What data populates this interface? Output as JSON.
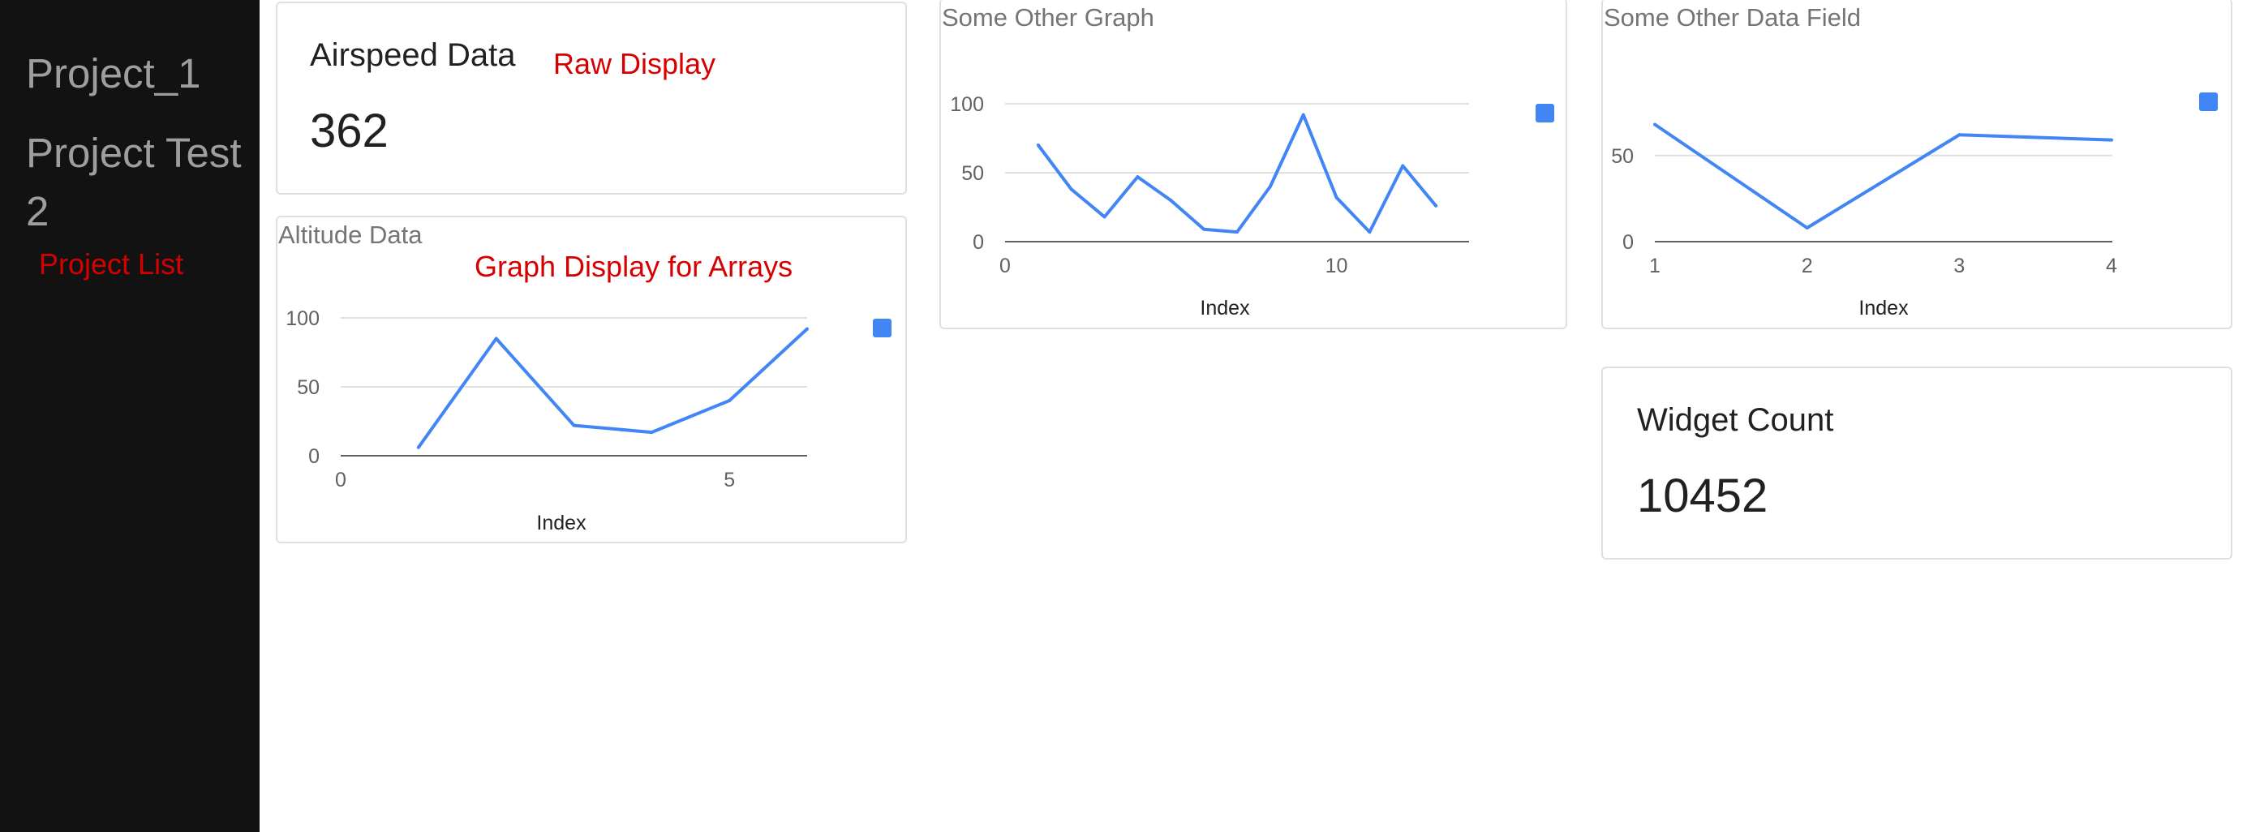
{
  "sidebar": {
    "projects": [
      "Project_1",
      "Project Test",
      "2"
    ],
    "annotation": "Project List"
  },
  "airspeed_card": {
    "title": "Airspeed Data",
    "annotation": "Raw Display",
    "value": "362"
  },
  "widget_card": {
    "title": "Widget Count",
    "value": "10452"
  },
  "altitude_annotation": "Graph Display for Arrays",
  "colors": {
    "series": "#4285f4",
    "grid": "#e0e0e0",
    "axis": "#616161",
    "annotation": "#d50000",
    "sidebar": "#121212"
  },
  "chart_data": [
    {
      "type": "line",
      "title": "Altitude Data",
      "xlabel": "Index",
      "ylabel": "",
      "xlim": [
        0,
        6
      ],
      "ylim": [
        0,
        100
      ],
      "x_ticks": [
        "0",
        "5"
      ],
      "y_ticks": [
        "0",
        "50",
        "100"
      ],
      "legend": "right",
      "grid": true,
      "x": [
        1,
        2,
        3,
        4,
        5,
        6
      ],
      "values": [
        6,
        85,
        22,
        17,
        40,
        92
      ]
    },
    {
      "type": "line",
      "title": "Some Other Graph",
      "xlabel": "Index",
      "ylabel": "",
      "xlim": [
        0,
        14
      ],
      "ylim": [
        0,
        100
      ],
      "x_ticks": [
        "0",
        "10"
      ],
      "y_ticks": [
        "0",
        "50",
        "100"
      ],
      "legend": "right",
      "grid": true,
      "x": [
        1,
        2,
        3,
        4,
        5,
        6,
        7,
        8,
        9,
        10,
        11,
        12,
        13
      ],
      "values": [
        70,
        38,
        18,
        47,
        30,
        9,
        7,
        40,
        92,
        32,
        7,
        55,
        26
      ]
    },
    {
      "type": "line",
      "title": "Some Other Data Field",
      "xlabel": "Index",
      "ylabel": "",
      "xlim": [
        1,
        4
      ],
      "ylim": [
        0,
        80
      ],
      "x_ticks": [
        "1",
        "2",
        "3",
        "4"
      ],
      "y_ticks": [
        "0",
        "50"
      ],
      "legend": "right",
      "grid": true,
      "x": [
        1,
        2,
        3,
        4
      ],
      "values": [
        68,
        8,
        62,
        59
      ]
    }
  ]
}
